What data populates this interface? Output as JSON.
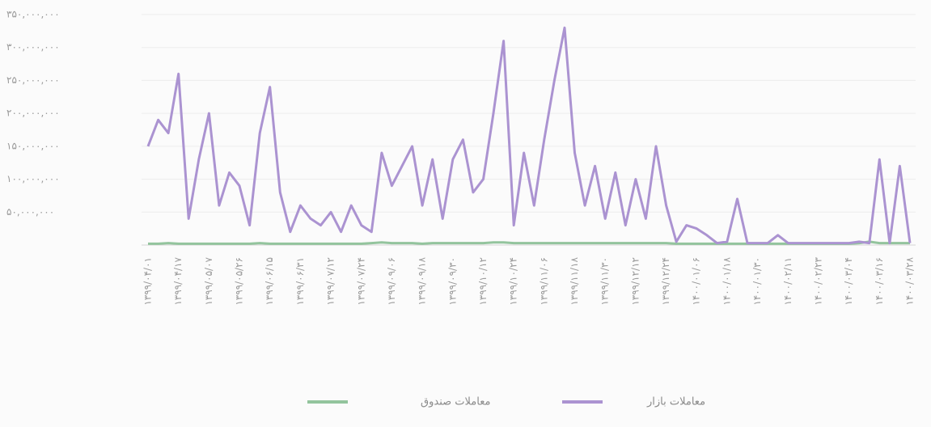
{
  "chart_data": {
    "type": "line",
    "categories": [
      "۱۳۹۹/۰۴/۰۱",
      null,
      null,
      "۱۳۹۹/۰۴/۱۷",
      null,
      null,
      "۱۳۹۹/۰۵/۰۷",
      null,
      null,
      "۱۳۹۹/۰۵/۲۶",
      null,
      null,
      "۱۳۹۹/۰۶/۱۵",
      null,
      null,
      "۱۳۹۹/۰۶/۳۱",
      null,
      null,
      "۱۳۹۹/۰۷/۱۲",
      null,
      null,
      "۱۳۹۹/۰۷/۲۴",
      null,
      null,
      "۱۳۹۹/۰۹/۰۶",
      null,
      null,
      "۱۳۹۹/۰۹/۱۸",
      null,
      null,
      "۱۳۹۹/۰۹/۳۰",
      null,
      null,
      "۱۳۹۹/۱۰/۱۲",
      null,
      null,
      "۱۳۹۹/۱۰/۲۴",
      null,
      null,
      "۱۳۹۹/۱۱/۰۶",
      null,
      null,
      "۱۳۹۹/۱۱/۱۸",
      null,
      null,
      "۱۳۹۹/۱۱/۳۰",
      null,
      null,
      "۱۳۹۹/۱۲/۱۲",
      null,
      null,
      "۱۳۹۹/۱۲/۲۴",
      null,
      null,
      "۱۴۰۰/۰۱/۰۶",
      null,
      null,
      "۱۴۰۰/۰۱/۱۸",
      null,
      null,
      "۱۴۰۰/۰۱/۳۰",
      null,
      null,
      "۱۴۰۰/۰۲/۱۱",
      null,
      null,
      "۱۴۰۰/۰۲/۲۳",
      null,
      null,
      "۱۴۰۰/۰۳/۰۴",
      null,
      null,
      "۱۴۰۰/۰۳/۱۶",
      null,
      null,
      "۱۴۰۰/۰۳/۲۸"
    ],
    "series": [
      {
        "name": "معاملات بازار",
        "color": "#ab93d1",
        "values": [
          150000000,
          190000000,
          170000000,
          260000000,
          40000000,
          130000000,
          200000000,
          60000000,
          110000000,
          90000000,
          30000000,
          170000000,
          240000000,
          80000000,
          20000000,
          60000000,
          40000000,
          30000000,
          50000000,
          20000000,
          60000000,
          30000000,
          20000000,
          140000000,
          90000000,
          120000000,
          150000000,
          60000000,
          130000000,
          40000000,
          130000000,
          160000000,
          80000000,
          100000000,
          200000000,
          310000000,
          30000000,
          140000000,
          60000000,
          160000000,
          250000000,
          330000000,
          140000000,
          60000000,
          120000000,
          40000000,
          110000000,
          30000000,
          100000000,
          40000000,
          150000000,
          60000000,
          5000000,
          30000000,
          25000000,
          15000000,
          3000000,
          5000000,
          70000000,
          3000000,
          3000000,
          3000000,
          15000000,
          3000000,
          3000000,
          3000000,
          3000000,
          3000000,
          3000000,
          3000000,
          5000000,
          3000000,
          130000000,
          3000000,
          120000000,
          3000000
        ]
      },
      {
        "name": "معاملات صندوق",
        "color": "#93c49d",
        "values": [
          2000000,
          2000000,
          3000000,
          2000000,
          2000000,
          2000000,
          2000000,
          2000000,
          2000000,
          2000000,
          2000000,
          3000000,
          2000000,
          2000000,
          2000000,
          2000000,
          2000000,
          2000000,
          2000000,
          2000000,
          2000000,
          2000000,
          3000000,
          4000000,
          3000000,
          3000000,
          3000000,
          2000000,
          3000000,
          3000000,
          3000000,
          3000000,
          3000000,
          3000000,
          4000000,
          4000000,
          3000000,
          3000000,
          3000000,
          3000000,
          3000000,
          3000000,
          3000000,
          3000000,
          3000000,
          3000000,
          3000000,
          3000000,
          3000000,
          3000000,
          3000000,
          3000000,
          2000000,
          2000000,
          2000000,
          2000000,
          2000000,
          2000000,
          2000000,
          2000000,
          2000000,
          2000000,
          2000000,
          2000000,
          2000000,
          2000000,
          2000000,
          2000000,
          2000000,
          2000000,
          3000000,
          5000000,
          3000000,
          3000000,
          3000000,
          3000000
        ]
      }
    ],
    "ylim": [
      0,
      350000000
    ],
    "yticks": [
      {
        "value": 50000000,
        "label": "۵۰,۰۰۰,۰۰۰"
      },
      {
        "value": 100000000,
        "label": "۱۰۰,۰۰۰,۰۰۰"
      },
      {
        "value": 150000000,
        "label": "۱۵۰,۰۰۰,۰۰۰"
      },
      {
        "value": 200000000,
        "label": "۲۰۰,۰۰۰,۰۰۰"
      },
      {
        "value": 250000000,
        "label": "۲۵۰,۰۰۰,۰۰۰"
      },
      {
        "value": 300000000,
        "label": "۳۰۰,۰۰۰,۰۰۰"
      },
      {
        "value": 350000000,
        "label": "۳۵۰,۰۰۰,۰۰۰"
      }
    ],
    "grid": true
  }
}
